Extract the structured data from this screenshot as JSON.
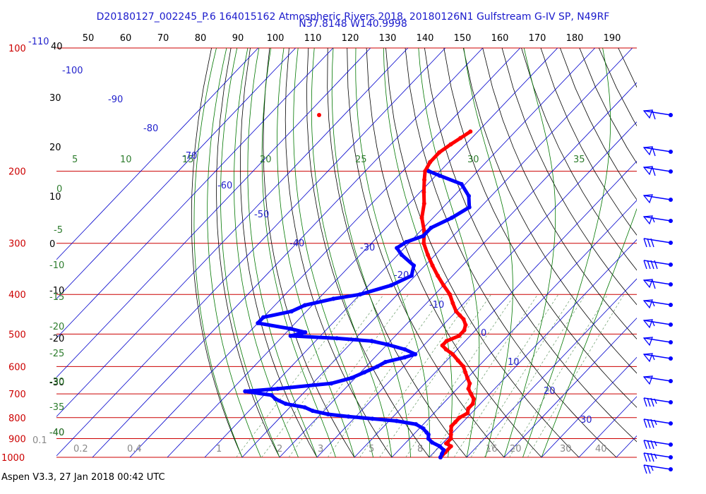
{
  "chart_data": {
    "type": "skew-t log-p",
    "title_line1": "D20180127_002245_P.6 164015162 Atmospheric Rivers 2018, 20180126N1 Gulfstream G-IV SP, N49RF",
    "title_line2": "N37.8148 W140.9998",
    "footer": "Aspen V3.3, 27 Jan 2018  00:42 UTC",
    "pressure_levels": [
      100,
      200,
      300,
      400,
      500,
      600,
      700,
      800,
      900,
      1000
    ],
    "pressure_labels": [
      "100",
      "200",
      "300",
      "400",
      "500",
      "600",
      "700",
      "800",
      "900",
      "1000"
    ],
    "top_axis_ticks": [
      "50",
      "60",
      "70",
      "80",
      "90",
      "100",
      "110",
      "120",
      "130",
      "140",
      "150",
      "160",
      "170",
      "180",
      "190"
    ],
    "left_temp_labels": [
      "40",
      "30",
      "20",
      "10",
      "0",
      "-10",
      "-20",
      "-30",
      "-40"
    ],
    "isotherm_labels": [
      "-110",
      "-100",
      "-90",
      "-80",
      "-70",
      "-60",
      "-50",
      "-40",
      "-30",
      "-20",
      "-10",
      "0",
      "10",
      "20",
      "30"
    ],
    "theta_e_labels": [
      "5",
      "10",
      "15",
      "20",
      "25",
      "30",
      "35",
      "0",
      "-5",
      "-10",
      "-15",
      "-20",
      "-25",
      "-30",
      "-35",
      "-40"
    ],
    "mixing_ratio_labels": [
      "0.1",
      "0.2",
      "0.4",
      "1",
      "2",
      "3",
      "5",
      "8",
      "16",
      "20",
      "30",
      "40"
    ],
    "series": [
      {
        "color": "#ff0000",
        "points_p_T": [
          [
            1000,
            13
          ],
          [
            970,
            13
          ],
          [
            940,
            13
          ],
          [
            925,
            11
          ],
          [
            900,
            11
          ],
          [
            880,
            10
          ],
          [
            860,
            9
          ],
          [
            840,
            8
          ],
          [
            820,
            8
          ],
          [
            800,
            8
          ],
          [
            780,
            9
          ],
          [
            760,
            8
          ],
          [
            740,
            8
          ],
          [
            720,
            7
          ],
          [
            700,
            5
          ],
          [
            680,
            3
          ],
          [
            660,
            2
          ],
          [
            640,
            0
          ],
          [
            620,
            -2
          ],
          [
            600,
            -4
          ],
          [
            580,
            -7
          ],
          [
            560,
            -10
          ],
          [
            545,
            -13
          ],
          [
            533,
            -15
          ],
          [
            520,
            -15
          ],
          [
            505,
            -13
          ],
          [
            490,
            -13
          ],
          [
            475,
            -14
          ],
          [
            460,
            -16
          ],
          [
            450,
            -18
          ],
          [
            440,
            -20
          ],
          [
            420,
            -23
          ],
          [
            400,
            -26
          ],
          [
            380,
            -30
          ],
          [
            360,
            -34
          ],
          [
            340,
            -38
          ],
          [
            320,
            -42
          ],
          [
            300,
            -46
          ],
          [
            280,
            -49
          ],
          [
            260,
            -53
          ],
          [
            240,
            -56
          ],
          [
            225,
            -59
          ],
          [
            210,
            -62
          ],
          [
            200,
            -64
          ],
          [
            190,
            -65
          ],
          [
            180,
            -65
          ],
          [
            172,
            -64
          ],
          [
            166,
            -63
          ],
          [
            160,
            -62
          ]
        ]
      },
      {
        "color": "#0000ff",
        "points_p_T": [
          [
            1000,
            13
          ],
          [
            980,
            12.5
          ],
          [
            960,
            12
          ],
          [
            940,
            10
          ],
          [
            920,
            7
          ],
          [
            900,
            5
          ],
          [
            880,
            4
          ],
          [
            870,
            3
          ],
          [
            850,
            1
          ],
          [
            830,
            -2
          ],
          [
            815,
            -8
          ],
          [
            805,
            -15
          ],
          [
            795,
            -22
          ],
          [
            785,
            -28
          ],
          [
            770,
            -33
          ],
          [
            755,
            -36
          ],
          [
            740,
            -42
          ],
          [
            720,
            -46
          ],
          [
            705,
            -48
          ],
          [
            690,
            -56
          ],
          [
            680,
            -48
          ],
          [
            660,
            -35
          ],
          [
            640,
            -31
          ],
          [
            620,
            -29
          ],
          [
            600,
            -27
          ],
          [
            585,
            -26
          ],
          [
            570,
            -22
          ],
          [
            560,
            -20
          ],
          [
            545,
            -24
          ],
          [
            530,
            -30
          ],
          [
            520,
            -35
          ],
          [
            512,
            -45
          ],
          [
            505,
            -58
          ],
          [
            495,
            -55
          ],
          [
            485,
            -60
          ],
          [
            470,
            -70
          ],
          [
            455,
            -70
          ],
          [
            440,
            -64
          ],
          [
            425,
            -62
          ],
          [
            410,
            -56
          ],
          [
            400,
            -50
          ],
          [
            380,
            -44
          ],
          [
            360,
            -41
          ],
          [
            340,
            -43
          ],
          [
            320,
            -49
          ],
          [
            308,
            -52
          ],
          [
            298,
            -51
          ],
          [
            288,
            -48
          ],
          [
            275,
            -48
          ],
          [
            260,
            -45
          ],
          [
            245,
            -43
          ],
          [
            230,
            -46
          ],
          [
            215,
            -51
          ],
          [
            205,
            -59
          ],
          [
            200,
            -63
          ]
        ]
      }
    ],
    "isolated_point": {
      "p": 150,
      "T": -56,
      "color": "#ff0000"
    },
    "wind_barbs": [
      {
        "p": 150,
        "speed_kt": 60
      },
      {
        "p": 180,
        "speed_kt": 60
      },
      {
        "p": 200,
        "speed_kt": 60
      },
      {
        "p": 230,
        "speed_kt": 50
      },
      {
        "p": 260,
        "speed_kt": 55
      },
      {
        "p": 300,
        "speed_kt": 30
      },
      {
        "p": 350,
        "speed_kt": 40
      },
      {
        "p": 400,
        "speed_kt": 60
      },
      {
        "p": 440,
        "speed_kt": 55
      },
      {
        "p": 480,
        "speed_kt": 55
      },
      {
        "p": 530,
        "speed_kt": 50
      },
      {
        "p": 580,
        "speed_kt": 55
      },
      {
        "p": 650,
        "speed_kt": 50
      },
      {
        "p": 740,
        "speed_kt": 35
      },
      {
        "p": 820,
        "speed_kt": 35
      },
      {
        "p": 880,
        "speed_kt": 35
      },
      {
        "p": 930,
        "speed_kt": 35
      },
      {
        "p": 970,
        "speed_kt": 25
      }
    ]
  }
}
